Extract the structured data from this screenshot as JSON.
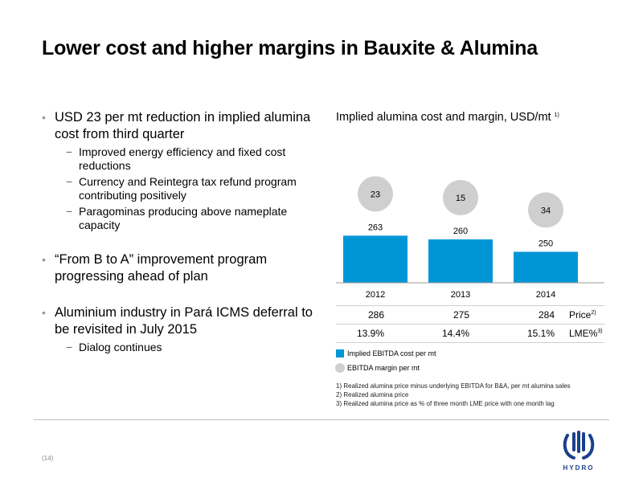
{
  "title": "Lower cost and higher margins in Bauxite & Alumina",
  "bullets": [
    {
      "text": "USD 23 per mt reduction in implied alumina cost from third quarter",
      "subs": [
        "Improved energy efficiency and fixed cost reductions",
        "Currency and Reintegra tax refund program contributing positively",
        "Paragominas producing above nameplate capacity"
      ]
    },
    {
      "text": "“From B to A” improvement program progressing ahead of plan",
      "subs": []
    },
    {
      "text": "Aluminium industry in Pará ICMS deferral to be revisited in July 2015",
      "subs": [
        "Dialog continues"
      ]
    }
  ],
  "chart_data": {
    "type": "bar",
    "title": "Implied alumina cost and margin, USD/mt",
    "title_note": "1)",
    "categories": [
      "2012",
      "2013",
      "2014"
    ],
    "series": [
      {
        "name": "Implied EBITDA cost per mt",
        "values": [
          263,
          260,
          250
        ],
        "color": "#0096d6"
      },
      {
        "name": "EBITDA margin per mt",
        "values": [
          23,
          15,
          34
        ],
        "color": "#cfcfcf"
      }
    ],
    "ylim": [
      225,
      330
    ]
  },
  "table": {
    "rows": [
      {
        "label": "Price",
        "note": "2)",
        "values": [
          "286",
          "275",
          "284"
        ]
      },
      {
        "label": "LME%",
        "note": "3)",
        "values": [
          "13.9%",
          "14.4%",
          "15.1%"
        ]
      }
    ]
  },
  "legend": {
    "cost": "Implied EBITDA cost per mt",
    "margin": "EBITDA margin per mt"
  },
  "footnotes": [
    "1)  Realized alumina price minus underlying EBITDA for B&A, per mt alumina sales",
    "2)  Realized alumina price",
    "3)  Realized alumina price as % of three month LME price with one month lag"
  ],
  "page_number": "(14)",
  "logo": {
    "name": "hydro-logo",
    "text": "HYDRO",
    "color": "#1b3f8b"
  }
}
